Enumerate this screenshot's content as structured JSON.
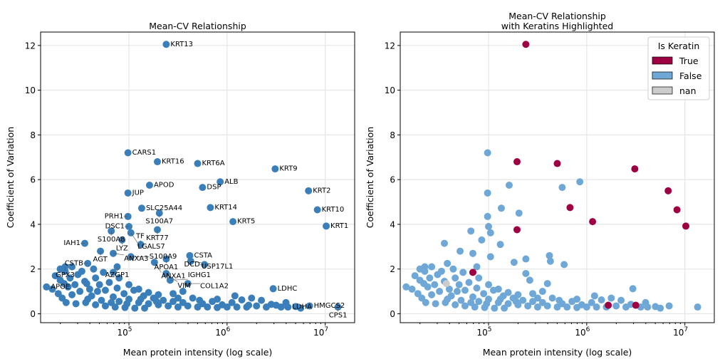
{
  "chart_data": [
    {
      "type": "scatter",
      "title": "Mean-CV Relationship",
      "xlabel": "Mean protein intensity (log scale)",
      "ylabel": "Coefficient of Variation",
      "xscale": "log",
      "xlim_log10": [
        4.1,
        7.3
      ],
      "ylim": [
        -0.4,
        12.6
      ],
      "yticks": [
        0,
        2,
        4,
        6,
        8,
        10,
        12
      ],
      "xticks": [
        "10^5",
        "10^6",
        "10^7"
      ],
      "grid": true,
      "color": "#3a7fba"
    },
    {
      "type": "scatter",
      "title": "Mean-CV Relationship\nwith Keratins Highlighted",
      "title_lines": [
        "Mean-CV Relationship",
        "with Keratins Highlighted"
      ],
      "xlabel": "Mean protein intensity (log scale)",
      "ylabel": "Coefficient of Variation",
      "xscale": "log",
      "xlim_log10": [
        4.1,
        7.3
      ],
      "ylim": [
        -0.4,
        12.6
      ],
      "yticks": [
        0,
        2,
        4,
        6,
        8,
        10,
        12
      ],
      "xticks": [
        "10^5",
        "10^6",
        "10^7"
      ],
      "grid": true,
      "legend": {
        "title": "Is Keratin",
        "placement": "top-right",
        "entries": [
          {
            "label": "True",
            "color": "#9e0142"
          },
          {
            "label": "False",
            "color": "#6fa8d6"
          },
          {
            "label": "nan",
            "color": "#cccccc"
          }
        ]
      }
    }
  ],
  "points": [
    {
      "gene": "KRT13",
      "log10_intensity": 5.38,
      "cv": 12.05,
      "keratin": "True"
    },
    {
      "gene": "CARS1",
      "log10_intensity": 4.99,
      "cv": 7.2,
      "keratin": "False"
    },
    {
      "gene": "KRT16",
      "log10_intensity": 5.29,
      "cv": 6.8,
      "keratin": "True"
    },
    {
      "gene": "KRT6A",
      "log10_intensity": 5.7,
      "cv": 6.72,
      "keratin": "True"
    },
    {
      "gene": "KRT9",
      "log10_intensity": 6.49,
      "cv": 6.48,
      "keratin": "True"
    },
    {
      "gene": "ALB",
      "log10_intensity": 5.93,
      "cv": 5.9,
      "keratin": "False"
    },
    {
      "gene": "DSP",
      "log10_intensity": 5.75,
      "cv": 5.65,
      "keratin": "False"
    },
    {
      "gene": "APOD",
      "log10_intensity": 5.21,
      "cv": 5.75,
      "keratin": "False"
    },
    {
      "gene": "JUP",
      "log10_intensity": 4.99,
      "cv": 5.4,
      "keratin": "False"
    },
    {
      "gene": "KRT2",
      "log10_intensity": 6.83,
      "cv": 5.5,
      "keratin": "True"
    },
    {
      "gene": "KRT10",
      "log10_intensity": 6.92,
      "cv": 4.65,
      "keratin": "True"
    },
    {
      "gene": "KRT1",
      "log10_intensity": 7.01,
      "cv": 3.92,
      "keratin": "True"
    },
    {
      "gene": "SLC25A44",
      "log10_intensity": 5.13,
      "cv": 4.72,
      "keratin": "False"
    },
    {
      "gene": "S100A7",
      "log10_intensity": 5.31,
      "cv": 4.5,
      "keratin": "False"
    },
    {
      "gene": "KRT14",
      "log10_intensity": 5.83,
      "cv": 4.75,
      "keratin": "True"
    },
    {
      "gene": "KRT5",
      "log10_intensity": 6.06,
      "cv": 4.12,
      "keratin": "True"
    },
    {
      "gene": "PRH1",
      "log10_intensity": 4.99,
      "cv": 4.35,
      "keratin": "False"
    },
    {
      "gene": "KRT77",
      "log10_intensity": 5.29,
      "cv": 3.76,
      "keratin": "True"
    },
    {
      "gene": "DSC1",
      "log10_intensity": 5.0,
      "cv": 3.9,
      "keratin": "False"
    },
    {
      "gene": "S100A8",
      "log10_intensity": 4.82,
      "cv": 3.7,
      "keratin": "False"
    },
    {
      "gene": "LGALS7",
      "log10_intensity": 5.02,
      "cv": 3.62,
      "keratin": "False"
    },
    {
      "gene": "IAH1",
      "log10_intensity": 4.55,
      "cv": 3.15,
      "keratin": "False"
    },
    {
      "gene": "LYZ",
      "log10_intensity": 4.93,
      "cv": 3.3,
      "keratin": "False"
    },
    {
      "gene": "TF",
      "log10_intensity": 5.12,
      "cv": 3.1,
      "keratin": "False"
    },
    {
      "gene": "AGT",
      "log10_intensity": 4.71,
      "cv": 2.8,
      "keratin": "False"
    },
    {
      "gene": "ANXA3",
      "log10_intensity": 4.84,
      "cv": 2.7,
      "keratin": "False"
    },
    {
      "gene": "S100A9",
      "log10_intensity": 5.02,
      "cv": 2.55,
      "keratin": "False"
    },
    {
      "gene": "APOA1",
      "log10_intensity": 5.38,
      "cv": 2.45,
      "keratin": "False"
    },
    {
      "gene": "CSTA",
      "log10_intensity": 5.62,
      "cv": 2.6,
      "keratin": "False"
    },
    {
      "gene": "USP17L1",
      "log10_intensity": 5.63,
      "cv": 2.35,
      "keratin": "False"
    },
    {
      "gene": "ANXA1",
      "log10_intensity": 5.26,
      "cv": 2.3,
      "keratin": "False"
    },
    {
      "gene": "DCD",
      "log10_intensity": 5.77,
      "cv": 2.2,
      "keratin": "False"
    },
    {
      "gene": "CSTB",
      "log10_intensity": 4.58,
      "cv": 2.25,
      "keratin": "False"
    },
    {
      "gene": "AZGP1",
      "log10_intensity": 4.88,
      "cv": 2.1,
      "keratin": "False"
    },
    {
      "gene": "VIM",
      "log10_intensity": 5.38,
      "cv": 1.8,
      "keratin": "False"
    },
    {
      "gene": "IGHG1",
      "log10_intensity": 5.42,
      "cv": 1.5,
      "keratin": "False"
    },
    {
      "gene": "COL1A2",
      "log10_intensity": 5.6,
      "cv": 1.35,
      "keratin": "False"
    },
    {
      "gene": "LDHC",
      "log10_intensity": 6.47,
      "cv": 1.12,
      "keratin": "False"
    },
    {
      "gene": "HMGCS2",
      "log10_intensity": 6.84,
      "cv": 0.35,
      "keratin": "False"
    },
    {
      "gene": "CPS1",
      "log10_intensity": 7.13,
      "cv": 0.3,
      "keratin": "False"
    },
    {
      "gene": "LDHA",
      "log10_intensity": 6.62,
      "cv": 0.3,
      "keratin": "False"
    },
    {
      "gene": "GPX3",
      "log10_intensity": 4.35,
      "cv": 2.1,
      "keratin": "False"
    },
    {
      "gene": "APOE",
      "log10_intensity": 4.16,
      "cv": 1.2,
      "keratin": "False"
    },
    {
      "gene": "",
      "log10_intensity": 4.84,
      "cv": 1.85,
      "keratin": "True"
    },
    {
      "gene": "",
      "log10_intensity": 6.22,
      "cv": 0.38,
      "keratin": "True"
    },
    {
      "gene": "",
      "log10_intensity": 6.5,
      "cv": 0.38,
      "keratin": "True"
    },
    {
      "gene": "",
      "log10_intensity": 4.57,
      "cv": 1.35,
      "keratin": "nan"
    }
  ],
  "cloud": [
    [
      4.25,
      1.7
    ],
    [
      4.3,
      1.5
    ],
    [
      4.22,
      1.1
    ],
    [
      4.28,
      0.9
    ],
    [
      4.35,
      1.9
    ],
    [
      4.4,
      1.6
    ],
    [
      4.45,
      1.3
    ],
    [
      4.5,
      1.0
    ],
    [
      4.32,
      0.7
    ],
    [
      4.38,
      1.2
    ],
    [
      4.42,
      0.85
    ],
    [
      4.48,
      1.75
    ],
    [
      4.55,
      1.45
    ],
    [
      4.6,
      1.1
    ],
    [
      4.62,
      0.8
    ],
    [
      4.66,
      1.6
    ],
    [
      4.7,
      1.3
    ],
    [
      4.72,
      0.6
    ],
    [
      4.76,
      1.05
    ],
    [
      4.8,
      1.4
    ],
    [
      4.84,
      0.75
    ],
    [
      4.88,
      1.15
    ],
    [
      4.9,
      0.55
    ],
    [
      4.95,
      0.9
    ],
    [
      5.0,
      0.65
    ],
    [
      5.05,
      1.05
    ],
    [
      5.1,
      0.5
    ],
    [
      5.15,
      0.8
    ],
    [
      5.2,
      0.45
    ],
    [
      5.25,
      0.7
    ],
    [
      5.3,
      0.4
    ],
    [
      5.35,
      0.6
    ],
    [
      5.4,
      0.35
    ],
    [
      5.45,
      0.55
    ],
    [
      5.5,
      0.3
    ],
    [
      5.55,
      0.5
    ],
    [
      5.6,
      0.35
    ],
    [
      5.65,
      0.7
    ],
    [
      5.7,
      0.3
    ],
    [
      5.75,
      0.45
    ],
    [
      5.8,
      0.3
    ],
    [
      5.85,
      0.55
    ],
    [
      5.9,
      0.28
    ],
    [
      5.95,
      0.4
    ],
    [
      6.0,
      0.3
    ],
    [
      6.05,
      0.5
    ],
    [
      6.1,
      0.3
    ],
    [
      6.15,
      0.62
    ],
    [
      6.2,
      0.3
    ],
    [
      6.3,
      0.35
    ],
    [
      6.35,
      0.6
    ],
    [
      6.4,
      0.3
    ],
    [
      6.45,
      0.42
    ],
    [
      6.55,
      0.3
    ],
    [
      6.6,
      0.5
    ],
    [
      6.7,
      0.32
    ],
    [
      6.75,
      0.25
    ],
    [
      4.3,
      2.0
    ],
    [
      4.36,
      0.5
    ],
    [
      4.46,
      0.45
    ],
    [
      4.56,
      0.5
    ],
    [
      4.66,
      0.4
    ],
    [
      4.76,
      0.35
    ],
    [
      4.86,
      0.3
    ],
    [
      4.96,
      0.28
    ],
    [
      5.06,
      0.25
    ],
    [
      5.16,
      0.25
    ],
    [
      4.52,
      1.9
    ],
    [
      4.64,
      2.0
    ],
    [
      4.74,
      1.85
    ],
    [
      4.9,
      1.6
    ],
    [
      5.0,
      1.3
    ],
    [
      5.1,
      1.1
    ],
    [
      5.2,
      0.95
    ],
    [
      5.3,
      0.85
    ],
    [
      5.45,
      0.9
    ],
    [
      5.55,
      1.0
    ],
    [
      4.42,
      2.1
    ],
    [
      4.34,
      1.35
    ],
    [
      4.58,
      0.65
    ],
    [
      4.68,
      1.0
    ],
    [
      4.82,
      0.5
    ],
    [
      4.98,
      0.45
    ],
    [
      5.12,
      0.65
    ],
    [
      5.28,
      0.55
    ],
    [
      5.5,
      0.7
    ],
    [
      5.72,
      0.6
    ],
    [
      5.9,
      0.65
    ],
    [
      6.08,
      0.8
    ],
    [
      6.25,
      0.7
    ]
  ]
}
